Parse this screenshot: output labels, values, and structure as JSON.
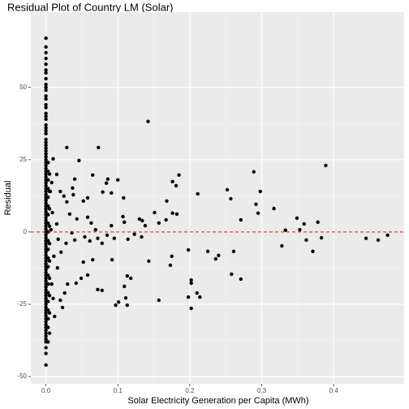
{
  "chart_data": {
    "type": "scatter",
    "title": "Residual Plot of Country LM (Solar)",
    "x_label": "Solar Electricity Generation per Capita (MWh)",
    "y_label": "Residual",
    "color": "#000000",
    "grid": true,
    "hline": 0,
    "hline_color": "#ff0000",
    "xlim": [
      -0.021,
      0.498
    ],
    "ylim": [
      -52.5,
      76
    ],
    "xticks": [
      {
        "value": 0,
        "label": "0.0"
      },
      0.1,
      0.2,
      0.3,
      0.4
    ],
    "yticks": [
      -50,
      -25,
      0,
      25,
      50
    ],
    "x": [
      0,
      0,
      0,
      0,
      0,
      0,
      0,
      0,
      0,
      0,
      0,
      0,
      0,
      0,
      0,
      0,
      0,
      0,
      0,
      0,
      0,
      0,
      0,
      0,
      0,
      0,
      0,
      0,
      0,
      0,
      0,
      0,
      0,
      0,
      0,
      0,
      0,
      0,
      0,
      0,
      0,
      0,
      0,
      0,
      0,
      0,
      0,
      0,
      0,
      0,
      0,
      0,
      0,
      0,
      0,
      0,
      0,
      0,
      0,
      0,
      0,
      0,
      0,
      0,
      0,
      0,
      0,
      0,
      0,
      0,
      0,
      0,
      0,
      0,
      0,
      0,
      0,
      0,
      0,
      0,
      0,
      0,
      0,
      0,
      0,
      0,
      0,
      0,
      0,
      0,
      0,
      0,
      0,
      0,
      0,
      0,
      0.003,
      0.003,
      0.003,
      0.003,
      0.003,
      0.003,
      0.003,
      0.003,
      0.003,
      0.003,
      0.003,
      0.003,
      0.003,
      0.003,
      0.003,
      0.003,
      0.003,
      0.003,
      0.003,
      0.003,
      0.003,
      0.005,
      0.005,
      0.005,
      0.005,
      0.005,
      0.005,
      0.005,
      0.005,
      0.005,
      0.005,
      0.142,
      0.389,
      0.289,
      0.073,
      0.029,
      0.046,
      0.185,
      0.176,
      0.211,
      0.252,
      0.257,
      0.298,
      0.295,
      0.292,
      0.271,
      0.317,
      0.349,
      0.359,
      0.378,
      0.333,
      0.353,
      0.362,
      0.383,
      0.371,
      0.328,
      0.445,
      0.462,
      0.475,
      0.24,
      0.236,
      0.261,
      0.258,
      0.271,
      0.225,
      0.198,
      0.202,
      0.202,
      0.198,
      0.202,
      0.214,
      0.157,
      0.173,
      0.175,
      0.143,
      0.113,
      0.109,
      0.111,
      0.113,
      0.097,
      0.101,
      0.118,
      0.078,
      0.072,
      0.058,
      0.052,
      0.049,
      0.042,
      0.03,
      0.026,
      0.02,
      0.012,
      0.023,
      0.054,
      0.061,
      0.072,
      0.085,
      0.095,
      0.114,
      0.123,
      0.133,
      0.091,
      0.107,
      0.109,
      0.13,
      0.134,
      0.138,
      0.151,
      0.157,
      0.167,
      0.168,
      0.182,
      0.176,
      0.181,
      0.108,
      0.086,
      0.084,
      0.1,
      0.091,
      0.079,
      0.065,
      0.058,
      0.052,
      0.058,
      0.043,
      0.033,
      0.029,
      0.037,
      0.038,
      0.04,
      0.069,
      0.063,
      0.078,
      0.092,
      0.065,
      0.021,
      0.017,
      0.028,
      0.04,
      0.036,
      0.011,
      0.016,
      0.008,
      0.01,
      0.006,
      0.008,
      0.015,
      0.01,
      0.02,
      0.025,
      0.015,
      0.009,
      0.007,
      0.21
    ],
    "values": [
      67,
      64,
      62,
      60,
      58,
      56,
      55,
      53,
      51,
      50,
      49,
      47,
      46,
      44,
      43,
      41,
      40,
      39,
      37,
      36,
      35,
      34,
      32,
      31,
      30,
      29,
      28,
      27,
      26,
      25,
      24,
      23,
      22,
      21,
      20,
      19,
      18,
      17,
      16,
      15,
      14,
      13,
      12,
      11,
      10,
      9,
      8,
      7,
      6,
      5,
      4,
      3,
      2,
      1,
      0,
      -1,
      -2,
      -3,
      -4,
      -5,
      -6,
      -7,
      -8,
      -9,
      -10,
      -11,
      -12,
      -13,
      -14,
      -15,
      -16,
      -17,
      -18,
      -19,
      -20,
      -21,
      -22,
      -23,
      -24,
      -25,
      -26,
      -27,
      -28,
      -29,
      -30,
      -31,
      -32,
      -33,
      -34,
      -35,
      -36,
      -37,
      -38,
      -40,
      -42,
      -46,
      24,
      21,
      18,
      15,
      12,
      9,
      6,
      3,
      0,
      -3,
      -6,
      -9,
      -12,
      -15,
      -18,
      -21,
      -24,
      -27,
      -30,
      -33,
      -38,
      20,
      14,
      8,
      2,
      -4,
      -10,
      -16,
      -22,
      -28,
      -35,
      38.2,
      23,
      20.8,
      29.2,
      29.2,
      24.7,
      19.7,
      17.4,
      13.2,
      14.6,
      11.5,
      14,
      6.5,
      9.6,
      4.2,
      8.1,
      4.8,
      2.8,
      3.4,
      0.6,
      0.8,
      -2.8,
      -2,
      -6.7,
      -4.8,
      -2.2,
      -2.8,
      -1.1,
      -8.1,
      -9.3,
      -6.7,
      -14.6,
      -16.3,
      -6.7,
      -6.2,
      -17.7,
      -16.6,
      -22.5,
      -26.4,
      -22.5,
      -23.6,
      -11.5,
      -8.4,
      -10.1,
      -15.2,
      -18.8,
      -22.8,
      -25.3,
      -25.3,
      -24.2,
      -16,
      -20.2,
      -19.9,
      -14.9,
      -10.4,
      -16,
      -17.7,
      -18,
      -21.1,
      -23.6,
      -29.2,
      -26.1,
      -1.7,
      -3.1,
      -2.2,
      -1.1,
      -2.2,
      -2.5,
      -0.8,
      -1.7,
      2.2,
      5.3,
      3.4,
      4.5,
      3.9,
      2.2,
      6.7,
      3.1,
      4.2,
      10.7,
      6.2,
      6.5,
      16,
      11.8,
      18.3,
      16.9,
      18,
      13.5,
      13.8,
      19.7,
      11.8,
      10.7,
      5.1,
      4.5,
      6.2,
      10.4,
      15.2,
      12.9,
      18.3,
      0.8,
      3.1,
      -3.9,
      -9.6,
      -9.6,
      -7,
      -2.5,
      -3.9,
      -2.8,
      -0.3,
      -8.4,
      -12.4,
      -18,
      -23,
      14,
      17.1,
      19.9,
      25.3,
      14,
      12.4,
      2.8,
      6.7,
      0.8,
      -21.1
    ]
  }
}
